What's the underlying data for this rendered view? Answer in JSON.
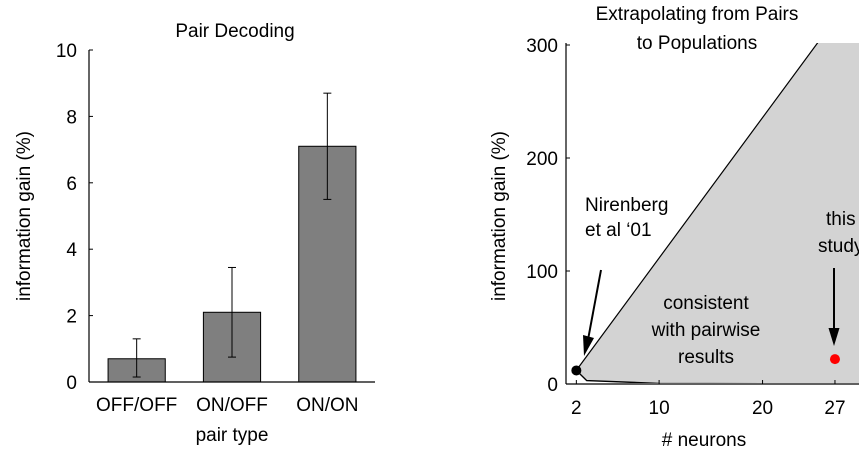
{
  "chart_data": [
    {
      "type": "bar",
      "title": "Pair Decoding",
      "xlabel": "pair type",
      "ylabel": "information gain (%)",
      "categories": [
        "OFF/OFF",
        "ON/OFF",
        "ON/ON"
      ],
      "values": [
        0.7,
        2.1,
        7.1
      ],
      "error_low": [
        0.15,
        0.75,
        5.5
      ],
      "error_high": [
        1.3,
        3.45,
        8.7
      ],
      "ylim": [
        0,
        10
      ],
      "yticks": [
        "0",
        "2",
        "4",
        "6",
        "8",
        "10"
      ],
      "bar_color": "#7f7f7f"
    },
    {
      "type": "area",
      "title_lines": [
        "Extrapolating from Pairs",
        "to Populations"
      ],
      "xlabel": "# neurons",
      "ylabel": "information gain (%)",
      "xlim": [
        1,
        30
      ],
      "ylim": [
        0,
        300
      ],
      "xticks": [
        2,
        10,
        20,
        27
      ],
      "yticks": [
        0,
        100,
        200,
        300
      ],
      "region": {
        "label_lines": [
          "consistent",
          "with pairwise",
          "results"
        ],
        "fill": "#d3d3d3",
        "upper_boundary": [
          [
            2,
            12
          ],
          [
            30,
            360
          ]
        ],
        "lower_boundary": [
          [
            2,
            12
          ],
          [
            3,
            3
          ],
          [
            10,
            0.5
          ],
          [
            30,
            0
          ]
        ]
      },
      "points": [
        {
          "x": 2,
          "y": 12,
          "color": "#000000",
          "label_lines": [
            "Nirenberg",
            "et al ‘01"
          ]
        },
        {
          "x": 27,
          "y": 22,
          "color": "#ff0000",
          "label_lines": [
            "this",
            "study"
          ]
        }
      ]
    }
  ]
}
